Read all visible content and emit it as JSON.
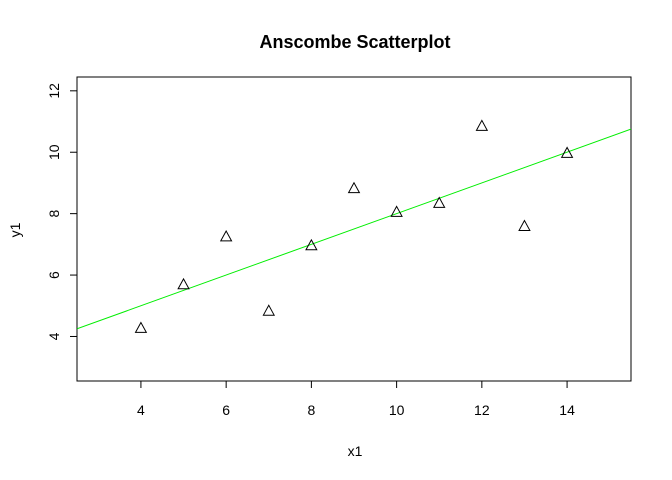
{
  "chart_data": {
    "type": "scatter",
    "title": "Anscombe Scatterplot",
    "xlabel": "x1",
    "ylabel": "y1",
    "xlim": [
      2.5,
      15.5
    ],
    "ylim": [
      2.55,
      12.45
    ],
    "x_ticks": [
      4,
      6,
      8,
      10,
      12,
      14
    ],
    "y_ticks": [
      4,
      6,
      8,
      10,
      12
    ],
    "grid": false,
    "legend": "none",
    "marker": "open-triangle",
    "point_color": "#000000",
    "series": [
      {
        "x": [
          10,
          8,
          13,
          9,
          11,
          14,
          6,
          4,
          12,
          7,
          5
        ],
        "y": [
          8.04,
          6.95,
          7.58,
          8.81,
          8.33,
          9.96,
          7.24,
          4.26,
          10.84,
          4.82,
          5.68
        ]
      }
    ],
    "fit_line": {
      "intercept": 3.0001,
      "slope": 0.5001,
      "color": "#00ee00"
    }
  }
}
